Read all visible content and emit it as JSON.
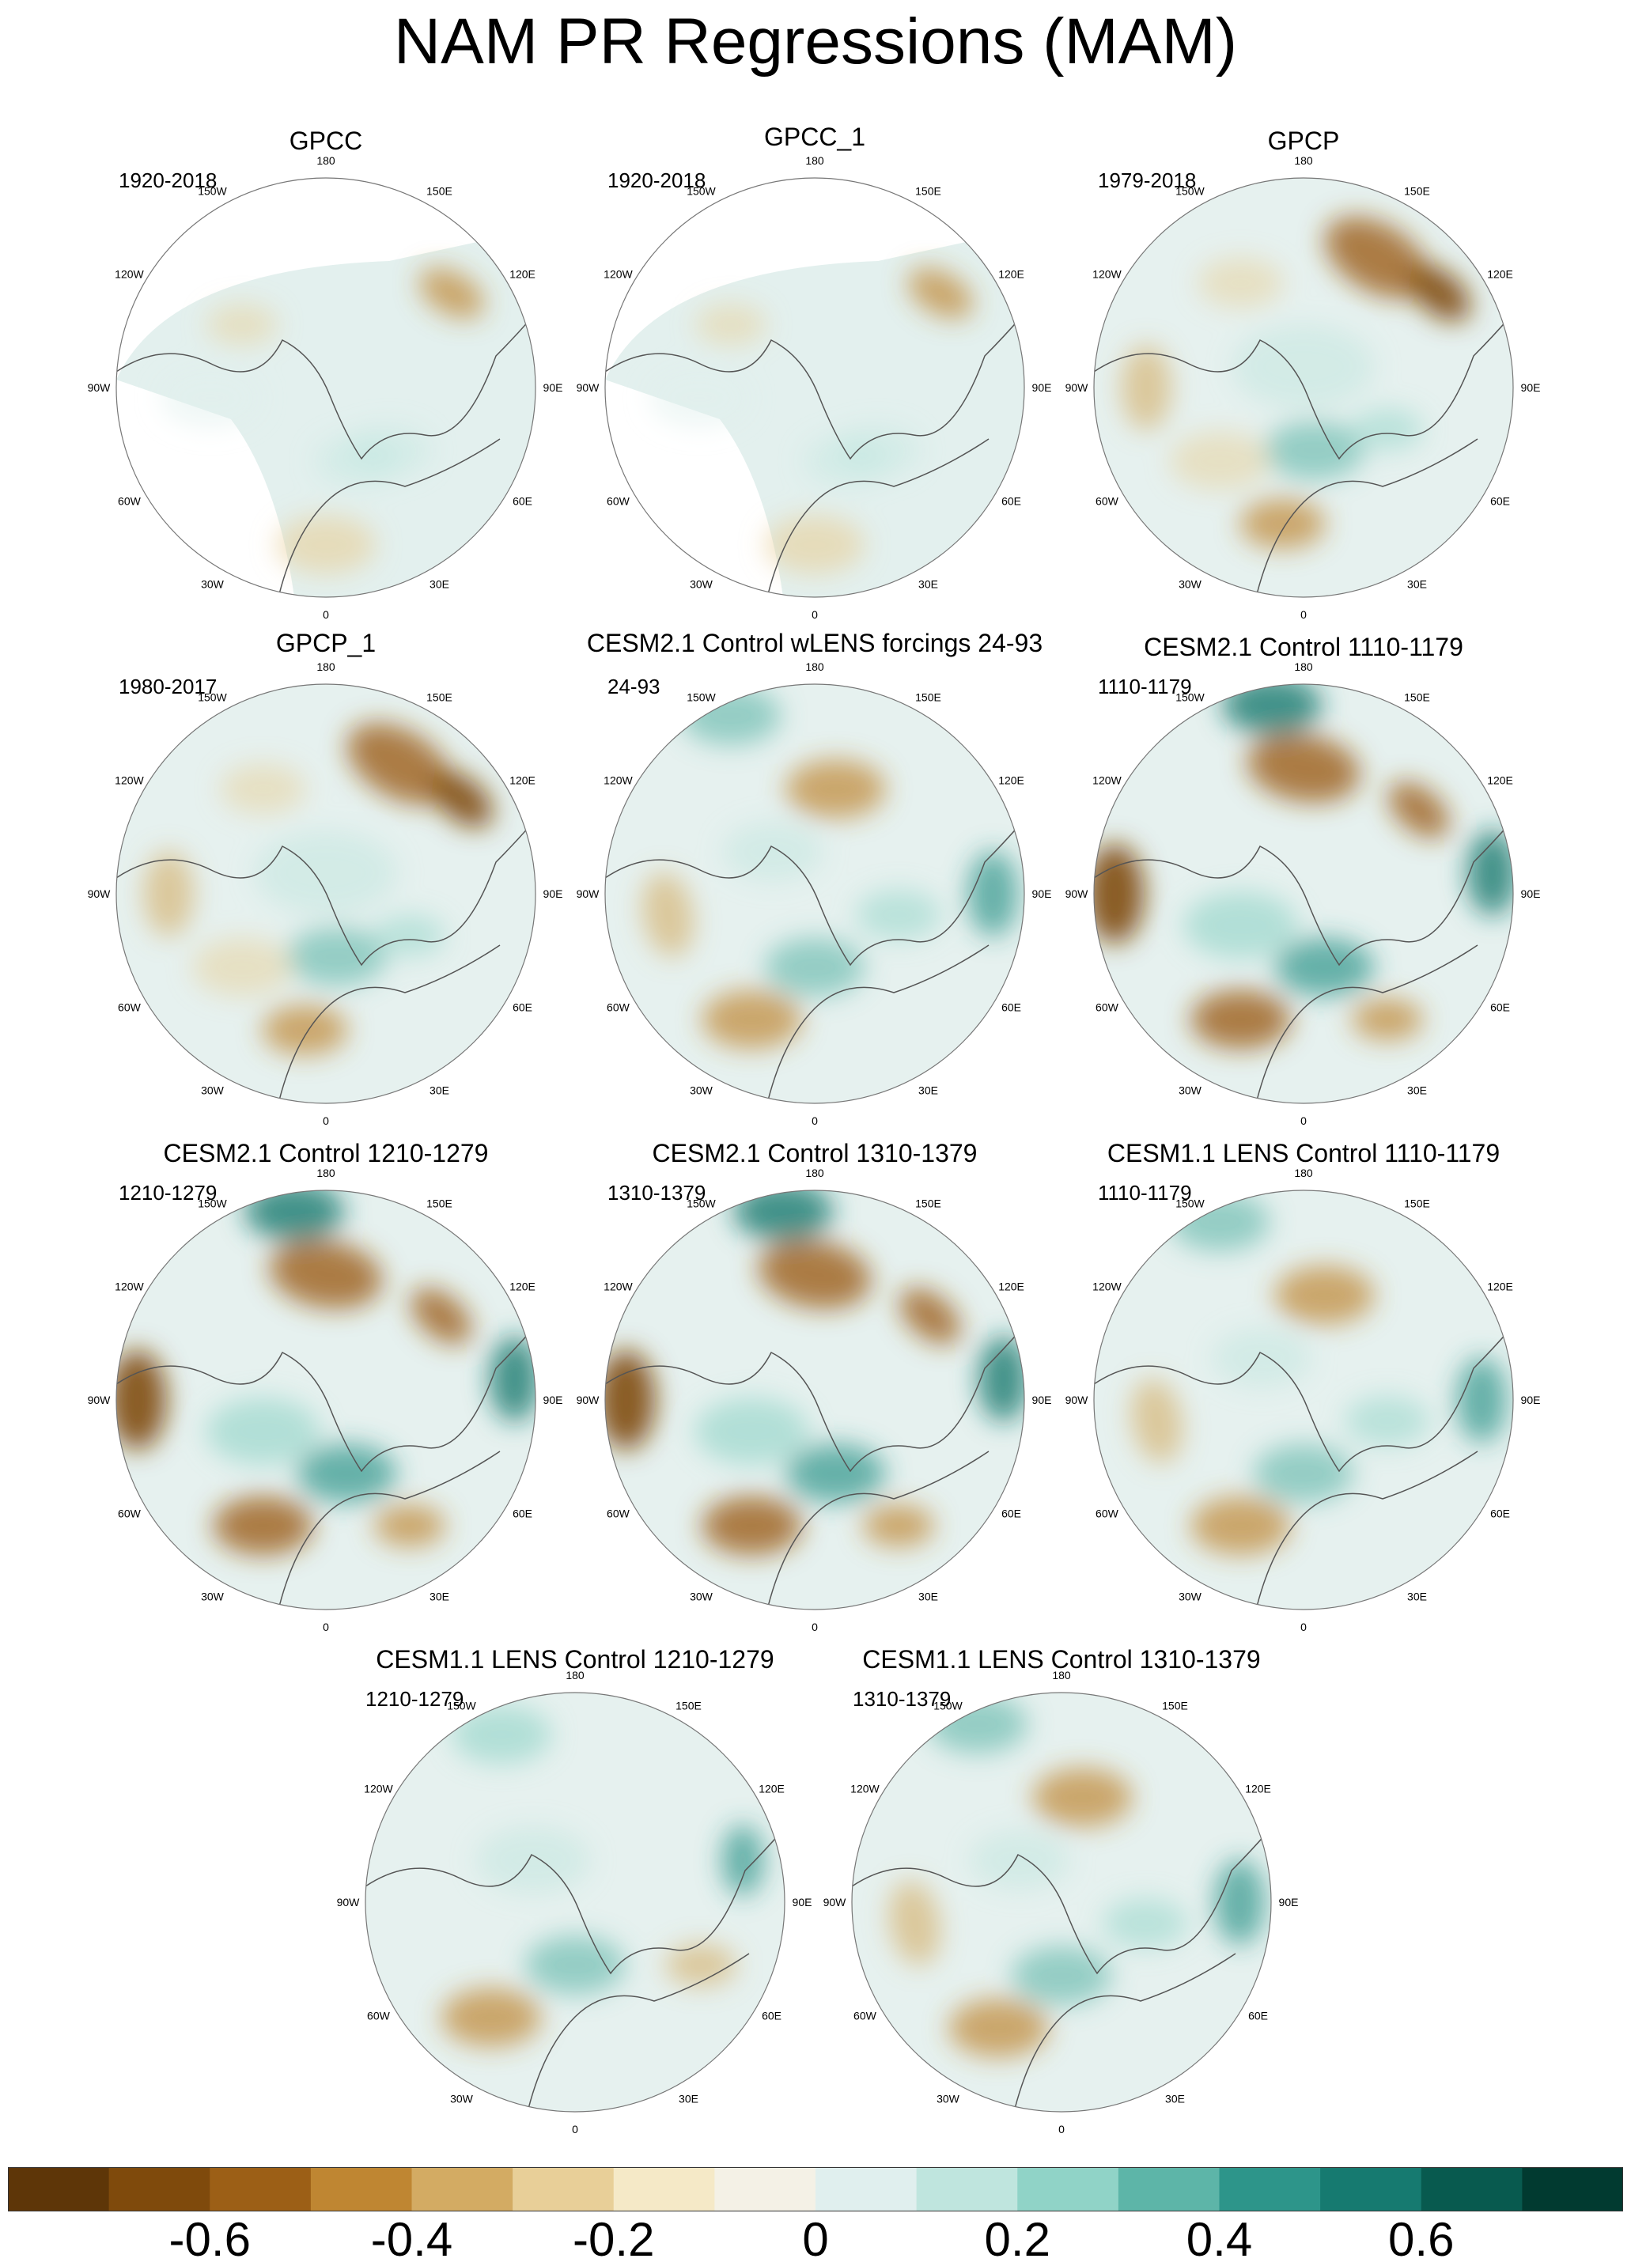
{
  "figure": {
    "title": "NAM PR Regressions (MAM)"
  },
  "panels": [
    {
      "id": "gpcc",
      "title": "GPCC",
      "period": "1920-2018",
      "pattern": "gpcc"
    },
    {
      "id": "gpcc_1",
      "title": "GPCC_1",
      "period": "1920-2018",
      "pattern": "gpcc"
    },
    {
      "id": "gpcp",
      "title": "GPCP",
      "period": "1979-2018",
      "pattern": "obs_full"
    },
    {
      "id": "gpcp_1",
      "title": "GPCP_1",
      "period": "1980-2017",
      "pattern": "obs_full"
    },
    {
      "id": "cesm21_wlens",
      "title": "CESM2.1 Control wLENS forcings 24-93",
      "period": "24-93",
      "pattern": "model"
    },
    {
      "id": "cesm21_1110",
      "title": "CESM2.1 Control 1110-1179",
      "period": "1110-1179",
      "pattern": "model_strong"
    },
    {
      "id": "cesm21_1210",
      "title": "CESM2.1 Control 1210-1279",
      "period": "1210-1279",
      "pattern": "model_strong"
    },
    {
      "id": "cesm21_1310",
      "title": "CESM2.1 Control 1310-1379",
      "period": "1310-1379",
      "pattern": "model_strong"
    },
    {
      "id": "cesm11_1110",
      "title": "CESM1.1 LENS Control 1110-1179",
      "period": "1110-1179",
      "pattern": "model"
    },
    {
      "id": "cesm11_1210",
      "title": "CESM1.1 LENS Control 1210-1279",
      "period": "1210-1279",
      "pattern": "model_weak"
    },
    {
      "id": "cesm11_1310",
      "title": "CESM1.1 LENS Control 1310-1379",
      "period": "1310-1379",
      "pattern": "model"
    }
  ],
  "lon_labels": [
    "180",
    "150E",
    "120E",
    "90E",
    "60E",
    "30E",
    "0",
    "30W",
    "60W",
    "90W",
    "120W",
    "150W"
  ],
  "colorbar": {
    "colors": [
      "#5e3608",
      "#7f4a0c",
      "#9c5f16",
      "#bf8632",
      "#d3ab63",
      "#e8cf98",
      "#f5e9c7",
      "#f4f1e6",
      "#e0efee",
      "#bfe5de",
      "#90d3c7",
      "#5db5a8",
      "#2d958a",
      "#167a70",
      "#085a4f",
      "#013a30"
    ],
    "tick_values": [
      -0.6,
      -0.4,
      -0.2,
      0,
      0.2,
      0.4,
      0.6
    ],
    "tick_labels": [
      "-0.6",
      "-0.4",
      "-0.2",
      "0",
      "0.2",
      "0.4",
      "0.6"
    ],
    "range": [
      -0.8,
      0.8
    ]
  }
}
